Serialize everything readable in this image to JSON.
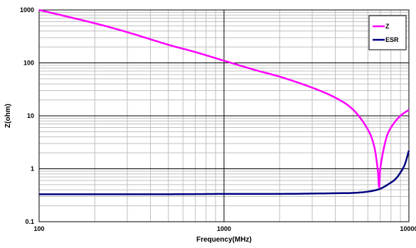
{
  "chart_data": {
    "type": "line",
    "xlabel": "Frequency(MHz)",
    "ylabel": "Z(ohm)",
    "x_scale": "log",
    "y_scale": "log",
    "xlim": [
      100,
      10000
    ],
    "ylim": [
      0.1,
      1000
    ],
    "x_tick_labels": [
      "100",
      "1000",
      "10000"
    ],
    "y_tick_labels": [
      "1000",
      "100",
      "10",
      "1",
      "0.1"
    ],
    "grid": true,
    "legend_position": "top-right",
    "series": [
      {
        "name": "Z",
        "color": "#ff00ff",
        "x": [
          100,
          200,
          300,
          500,
          700,
          1000,
          1500,
          2000,
          3000,
          4000,
          5000,
          6000,
          6500,
          6800,
          6900,
          7000,
          7500,
          8000,
          9000,
          10000
        ],
        "y": [
          1000,
          560,
          380,
          220,
          160,
          110,
          72,
          55,
          34,
          22,
          13,
          5.5,
          2.6,
          0.9,
          0.45,
          1.0,
          3.5,
          6,
          10,
          13
        ]
      },
      {
        "name": "ESR",
        "color": "#000080",
        "x": [
          100,
          200,
          500,
          1000,
          2000,
          3000,
          4000,
          5000,
          6000,
          7000,
          8000,
          8500,
          9000,
          9500,
          10000
        ],
        "y": [
          0.33,
          0.33,
          0.33,
          0.335,
          0.335,
          0.34,
          0.345,
          0.35,
          0.37,
          0.42,
          0.55,
          0.65,
          0.85,
          1.2,
          2.2
        ]
      }
    ]
  }
}
